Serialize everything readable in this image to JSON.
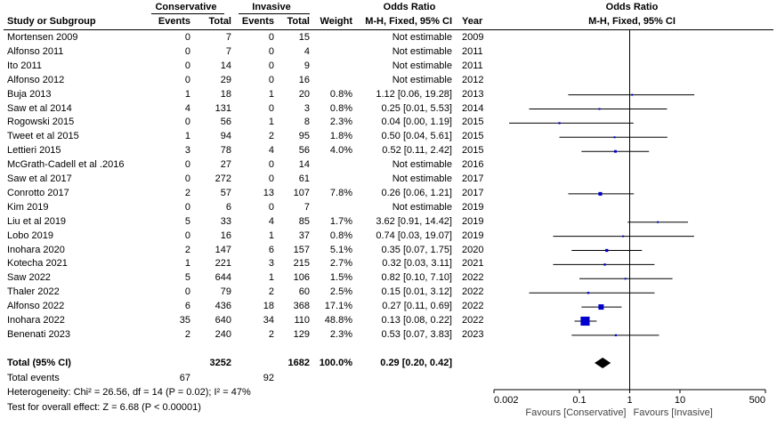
{
  "header": {
    "group1": "Conservative",
    "group2": "Invasive",
    "or_title": "Odds Ratio",
    "col_study": "Study or Subgroup",
    "col_events": "Events",
    "col_total": "Total",
    "col_weight": "Weight",
    "col_method": "M-H, Fixed, 95% CI",
    "col_year": "Year",
    "plot_title": "Odds Ratio",
    "plot_method": "M-H, Fixed, 95% CI"
  },
  "studies": [
    {
      "name": "Mortensen 2009",
      "e1": "0",
      "t1": "7",
      "e2": "0",
      "t2": "15",
      "weight": "",
      "ci": "Not estimable",
      "year": "2009"
    },
    {
      "name": "Alfonso 2011",
      "e1": "0",
      "t1": "7",
      "e2": "0",
      "t2": "4",
      "weight": "",
      "ci": "Not estimable",
      "year": "2011"
    },
    {
      "name": "Ito 2011",
      "e1": "0",
      "t1": "14",
      "e2": "0",
      "t2": "9",
      "weight": "",
      "ci": "Not estimable",
      "year": "2011"
    },
    {
      "name": "Alfonso 2012",
      "e1": "0",
      "t1": "29",
      "e2": "0",
      "t2": "16",
      "weight": "",
      "ci": "Not estimable",
      "year": "2012"
    },
    {
      "name": "Buja 2013",
      "e1": "1",
      "t1": "18",
      "e2": "1",
      "t2": "20",
      "weight": "0.8%",
      "ci": "1.12 [0.06, 19.28]",
      "year": "2013"
    },
    {
      "name": "Saw et al 2014",
      "e1": "4",
      "t1": "131",
      "e2": "0",
      "t2": "3",
      "weight": "0.8%",
      "ci": "0.25 [0.01, 5.53]",
      "year": "2014"
    },
    {
      "name": "Rogowski 2015",
      "e1": "0",
      "t1": "56",
      "e2": "1",
      "t2": "8",
      "weight": "2.3%",
      "ci": "0.04 [0.00, 1.19]",
      "year": "2015"
    },
    {
      "name": "Tweet et al 2015",
      "e1": "1",
      "t1": "94",
      "e2": "2",
      "t2": "95",
      "weight": "1.8%",
      "ci": "0.50 [0.04, 5.61]",
      "year": "2015"
    },
    {
      "name": "Lettieri 2015",
      "e1": "3",
      "t1": "78",
      "e2": "4",
      "t2": "56",
      "weight": "4.0%",
      "ci": "0.52 [0.11, 2.42]",
      "year": "2015"
    },
    {
      "name": "McGrath-Cadell et al .2016",
      "e1": "0",
      "t1": "27",
      "e2": "0",
      "t2": "14",
      "weight": "",
      "ci": "Not estimable",
      "year": "2016"
    },
    {
      "name": "Saw et al 2017",
      "e1": "0",
      "t1": "272",
      "e2": "0",
      "t2": "61",
      "weight": "",
      "ci": "Not estimable",
      "year": "2017"
    },
    {
      "name": "Conrotto 2017",
      "e1": "2",
      "t1": "57",
      "e2": "13",
      "t2": "107",
      "weight": "7.8%",
      "ci": "0.26 [0.06, 1.21]",
      "year": "2017"
    },
    {
      "name": "Kim 2019",
      "e1": "0",
      "t1": "6",
      "e2": "0",
      "t2": "7",
      "weight": "",
      "ci": "Not estimable",
      "year": "2019"
    },
    {
      "name": "Liu et al 2019",
      "e1": "5",
      "t1": "33",
      "e2": "4",
      "t2": "85",
      "weight": "1.7%",
      "ci": "3.62 [0.91, 14.42]",
      "year": "2019"
    },
    {
      "name": "Lobo 2019",
      "e1": "0",
      "t1": "16",
      "e2": "1",
      "t2": "37",
      "weight": "0.8%",
      "ci": "0.74 [0.03, 19.07]",
      "year": "2019"
    },
    {
      "name": "Inohara 2020",
      "e1": "2",
      "t1": "147",
      "e2": "6",
      "t2": "157",
      "weight": "5.1%",
      "ci": "0.35 [0.07, 1.75]",
      "year": "2020"
    },
    {
      "name": "Kotecha 2021",
      "e1": "1",
      "t1": "221",
      "e2": "3",
      "t2": "215",
      "weight": "2.7%",
      "ci": "0.32 [0.03, 3.11]",
      "year": "2021"
    },
    {
      "name": "Saw 2022",
      "e1": "5",
      "t1": "644",
      "e2": "1",
      "t2": "106",
      "weight": "1.5%",
      "ci": "0.82 [0.10, 7.10]",
      "year": "2022"
    },
    {
      "name": "Thaler 2022",
      "e1": "0",
      "t1": "79",
      "e2": "2",
      "t2": "60",
      "weight": "2.5%",
      "ci": "0.15 [0.01, 3.12]",
      "year": "2022"
    },
    {
      "name": "Alfonso 2022",
      "e1": "6",
      "t1": "436",
      "e2": "18",
      "t2": "368",
      "weight": "17.1%",
      "ci": "0.27 [0.11, 0.69]",
      "year": "2022"
    },
    {
      "name": "Inohara 2022",
      "e1": "35",
      "t1": "640",
      "e2": "34",
      "t2": "110",
      "weight": "48.8%",
      "ci": "0.13 [0.08, 0.22]",
      "year": "2022"
    },
    {
      "name": "Benenati 2023",
      "e1": "2",
      "t1": "240",
      "e2": "2",
      "t2": "129",
      "weight": "2.3%",
      "ci": "0.53 [0.07, 3.83]",
      "year": "2023"
    }
  ],
  "total": {
    "label": "Total (95% CI)",
    "t1": "3252",
    "t2": "1682",
    "weight": "100.0%",
    "ci": "0.29 [0.20, 0.42]",
    "events_label": "Total events",
    "e1": "67",
    "e2": "92"
  },
  "footer": {
    "heterogeneity": "Heterogeneity: Chi² = 26.56, df = 14 (P = 0.02); I² = 47%",
    "overall": "Test for overall effect: Z = 6.68 (P < 0.00001)"
  },
  "axis": {
    "ticks": [
      "0.002",
      "0.1",
      "1",
      "10",
      "500"
    ],
    "favours_left": "Favours [Conservative]",
    "favours_right": "Favours [Invasive]"
  },
  "chart_data": {
    "type": "forest",
    "scale": "log",
    "xlim": [
      0.002,
      500
    ],
    "null_value": 1,
    "tick_values": [
      0.002,
      0.1,
      1,
      10,
      500
    ],
    "points": [
      {
        "name": "Buja 2013",
        "or": 1.12,
        "lo": 0.06,
        "hi": 19.28,
        "weight": 0.8
      },
      {
        "name": "Saw et al 2014",
        "or": 0.25,
        "lo": 0.01,
        "hi": 5.53,
        "weight": 0.8
      },
      {
        "name": "Rogowski 2015",
        "or": 0.04,
        "lo": 0.004,
        "hi": 1.19,
        "weight": 2.3
      },
      {
        "name": "Tweet et al 2015",
        "or": 0.5,
        "lo": 0.04,
        "hi": 5.61,
        "weight": 1.8
      },
      {
        "name": "Lettieri 2015",
        "or": 0.52,
        "lo": 0.11,
        "hi": 2.42,
        "weight": 4.0
      },
      {
        "name": "Conrotto 2017",
        "or": 0.26,
        "lo": 0.06,
        "hi": 1.21,
        "weight": 7.8
      },
      {
        "name": "Liu et al 2019",
        "or": 3.62,
        "lo": 0.91,
        "hi": 14.42,
        "weight": 1.7
      },
      {
        "name": "Lobo 2019",
        "or": 0.74,
        "lo": 0.03,
        "hi": 19.07,
        "weight": 0.8
      },
      {
        "name": "Inohara 2020",
        "or": 0.35,
        "lo": 0.07,
        "hi": 1.75,
        "weight": 5.1
      },
      {
        "name": "Kotecha 2021",
        "or": 0.32,
        "lo": 0.03,
        "hi": 3.11,
        "weight": 2.7
      },
      {
        "name": "Saw 2022",
        "or": 0.82,
        "lo": 0.1,
        "hi": 7.1,
        "weight": 1.5
      },
      {
        "name": "Thaler 2022",
        "or": 0.15,
        "lo": 0.01,
        "hi": 3.12,
        "weight": 2.5
      },
      {
        "name": "Alfonso 2022",
        "or": 0.27,
        "lo": 0.11,
        "hi": 0.69,
        "weight": 17.1
      },
      {
        "name": "Inohara 2022",
        "or": 0.13,
        "lo": 0.08,
        "hi": 0.22,
        "weight": 48.8
      },
      {
        "name": "Benenati 2023",
        "or": 0.53,
        "lo": 0.07,
        "hi": 3.83,
        "weight": 2.3
      }
    ],
    "pooled": {
      "or": 0.29,
      "lo": 0.2,
      "hi": 0.42
    },
    "colors": {
      "box": "#0000cc",
      "line": "#000000",
      "diamond": "#000000"
    }
  }
}
